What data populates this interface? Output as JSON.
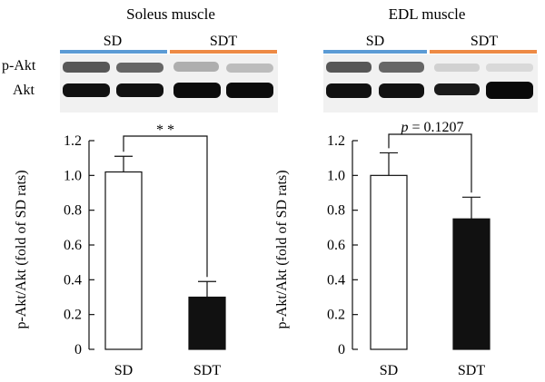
{
  "figure": {
    "blot_row_labels": [
      "p-Akt",
      "Akt"
    ]
  },
  "colors": {
    "sd_bar_fill": "#ffffff",
    "sdt_bar_fill": "#111111",
    "sd_group_line": "#5b9bd5",
    "sdt_group_line": "#ed8a45"
  },
  "chart_data": [
    {
      "type": "bar",
      "title": "Soleus muscle",
      "xlabel": "",
      "ylabel": "p-Akt/Akt (fold of SD rats)",
      "categories": [
        "SD",
        "SDT"
      ],
      "values": [
        1.02,
        0.3
      ],
      "errors": [
        0.09,
        0.09
      ],
      "ylim": [
        0,
        1.2
      ],
      "yticks": [
        "0",
        "0.2",
        "0.4",
        "0.6",
        "0.8",
        "1.0",
        "1.2"
      ],
      "blot_groups": [
        "SD",
        "SDT"
      ],
      "significance": "*  *",
      "grid": false,
      "legend": "none"
    },
    {
      "type": "bar",
      "title": "EDL muscle",
      "xlabel": "",
      "ylabel": "p-Akt/Akt (fold of SD rats)",
      "categories": [
        "SD",
        "SDT"
      ],
      "values": [
        1.0,
        0.75
      ],
      "errors": [
        0.13,
        0.125
      ],
      "ylim": [
        0,
        1.2
      ],
      "yticks": [
        "0",
        "0.2",
        "0.4",
        "0.6",
        "0.8",
        "1.0",
        "1.2"
      ],
      "blot_groups": [
        "SD",
        "SDT"
      ],
      "significance_p_label": "p",
      "significance_p_value": "= 0.1207",
      "grid": false,
      "legend": "none"
    }
  ]
}
